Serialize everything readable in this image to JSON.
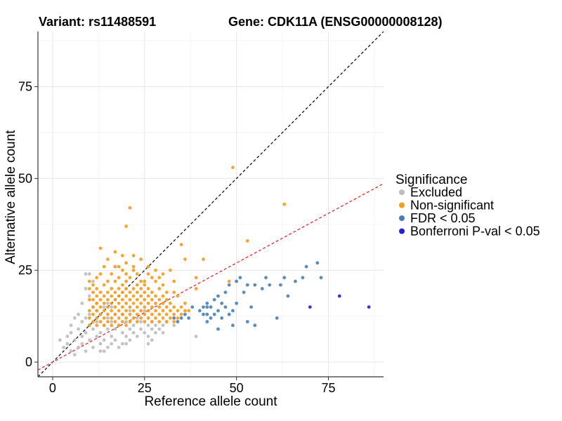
{
  "chart_data": {
    "type": "scatter",
    "title_left": "Variant: rs11488591",
    "title_right": "Gene: CDK11A (ENSG00000008128)",
    "xlabel": "Reference allele count",
    "ylabel": "Alternative allele count",
    "xlim": [
      -4,
      90
    ],
    "ylim": [
      -4,
      90
    ],
    "x_ticks": [
      0,
      25,
      50,
      75
    ],
    "y_ticks": [
      0,
      25,
      50,
      75
    ],
    "grid": true,
    "reference_lines": [
      {
        "name": "y = x",
        "slope": 1.0,
        "intercept": 0,
        "color": "#000000",
        "dash": "dashed"
      },
      {
        "name": "fit",
        "slope": 0.54,
        "intercept": 0,
        "color": "#e31a1c",
        "dash": "dashed"
      }
    ],
    "legend": {
      "title": "Significance",
      "position": "right",
      "entries": [
        {
          "label": "Excluded",
          "color": "#bdbdbd"
        },
        {
          "label": "Non-significant",
          "color": "#f39c1f"
        },
        {
          "label": "FDR < 0.05",
          "color": "#4a7fb5"
        },
        {
          "label": "Bonferroni P-val < 0.05",
          "color": "#1f1fdd"
        }
      ]
    },
    "series": [
      {
        "name": "Excluded",
        "color": "#bdbdbd",
        "points": [
          [
            2,
            6
          ],
          [
            3,
            4
          ],
          [
            4,
            5
          ],
          [
            5,
            3
          ],
          [
            5,
            8
          ],
          [
            6,
            6
          ],
          [
            6,
            2
          ],
          [
            7,
            9
          ],
          [
            7,
            4
          ],
          [
            8,
            7
          ],
          [
            8,
            11
          ],
          [
            8,
            5
          ],
          [
            9,
            12
          ],
          [
            9,
            8
          ],
          [
            9,
            3
          ],
          [
            10,
            10
          ],
          [
            10,
            13
          ],
          [
            10,
            6
          ],
          [
            11,
            15
          ],
          [
            11,
            9
          ],
          [
            11,
            4
          ],
          [
            12,
            11
          ],
          [
            12,
            7
          ],
          [
            12,
            16
          ],
          [
            13,
            8
          ],
          [
            13,
            13
          ],
          [
            13,
            5
          ],
          [
            14,
            10
          ],
          [
            14,
            6
          ],
          [
            14,
            3
          ],
          [
            15,
            9
          ],
          [
            15,
            12
          ],
          [
            15,
            4
          ],
          [
            16,
            7
          ],
          [
            16,
            11
          ],
          [
            16,
            5
          ],
          [
            17,
            9
          ],
          [
            17,
            6
          ],
          [
            18,
            10
          ],
          [
            18,
            4
          ],
          [
            19,
            8
          ],
          [
            19,
            5
          ],
          [
            20,
            11
          ],
          [
            20,
            7
          ],
          [
            21,
            9
          ],
          [
            21,
            6
          ],
          [
            22,
            10
          ],
          [
            22,
            8
          ],
          [
            23,
            12
          ],
          [
            23,
            7
          ],
          [
            24,
            9
          ],
          [
            24,
            11
          ],
          [
            25,
            8
          ],
          [
            26,
            10
          ],
          [
            26,
            7
          ],
          [
            27,
            11
          ],
          [
            27,
            9
          ],
          [
            28,
            10
          ],
          [
            28,
            8
          ],
          [
            29,
            9
          ],
          [
            30,
            10
          ],
          [
            30,
            8
          ],
          [
            31,
            11
          ],
          [
            33,
            10
          ],
          [
            9,
            24
          ],
          [
            10,
            24
          ],
          [
            8,
            16
          ],
          [
            7,
            13
          ],
          [
            6,
            12
          ],
          [
            10,
            18
          ],
          [
            9,
            20
          ],
          [
            11,
            22
          ],
          [
            12,
            14
          ],
          [
            5,
            10
          ],
          [
            4,
            7
          ],
          [
            13,
            3
          ],
          [
            20,
            5
          ],
          [
            14,
            15
          ],
          [
            16,
            15
          ],
          [
            15,
            16
          ],
          [
            17,
            13
          ],
          [
            21,
            14
          ],
          [
            19,
            13
          ],
          [
            25,
            14
          ],
          [
            27,
            6
          ],
          [
            26,
            5
          ],
          [
            39,
            7
          ]
        ]
      },
      {
        "name": "Non-significant",
        "color": "#f39c1f",
        "points": [
          [
            10,
            10
          ],
          [
            10,
            12
          ],
          [
            10,
            14
          ],
          [
            10,
            17
          ],
          [
            10,
            20
          ],
          [
            10,
            22
          ],
          [
            11,
            11
          ],
          [
            11,
            13
          ],
          [
            11,
            15
          ],
          [
            11,
            17
          ],
          [
            11,
            19
          ],
          [
            11,
            21
          ],
          [
            12,
            10
          ],
          [
            12,
            12
          ],
          [
            12,
            14
          ],
          [
            12,
            16
          ],
          [
            12,
            18
          ],
          [
            12,
            20
          ],
          [
            12,
            23
          ],
          [
            13,
            11
          ],
          [
            13,
            13
          ],
          [
            13,
            15
          ],
          [
            13,
            17
          ],
          [
            13,
            19
          ],
          [
            13,
            24
          ],
          [
            13,
            31
          ],
          [
            14,
            10
          ],
          [
            14,
            12
          ],
          [
            14,
            14
          ],
          [
            14,
            16
          ],
          [
            14,
            18
          ],
          [
            14,
            21
          ],
          [
            14,
            26
          ],
          [
            15,
            11
          ],
          [
            15,
            13
          ],
          [
            15,
            15
          ],
          [
            15,
            17
          ],
          [
            15,
            19
          ],
          [
            15,
            22
          ],
          [
            15,
            28
          ],
          [
            16,
            10
          ],
          [
            16,
            12
          ],
          [
            16,
            14
          ],
          [
            16,
            16
          ],
          [
            16,
            18
          ],
          [
            16,
            20
          ],
          [
            16,
            24
          ],
          [
            17,
            11
          ],
          [
            17,
            13
          ],
          [
            17,
            15
          ],
          [
            17,
            17
          ],
          [
            17,
            19
          ],
          [
            17,
            22
          ],
          [
            17,
            30
          ],
          [
            18,
            10
          ],
          [
            18,
            12
          ],
          [
            18,
            14
          ],
          [
            18,
            16
          ],
          [
            18,
            18
          ],
          [
            18,
            20
          ],
          [
            18,
            23
          ],
          [
            18,
            26
          ],
          [
            19,
            11
          ],
          [
            19,
            13
          ],
          [
            19,
            15
          ],
          [
            19,
            17
          ],
          [
            19,
            19
          ],
          [
            19,
            21
          ],
          [
            19,
            25
          ],
          [
            19,
            29
          ],
          [
            20,
            10
          ],
          [
            20,
            12
          ],
          [
            20,
            14
          ],
          [
            20,
            16
          ],
          [
            20,
            18
          ],
          [
            20,
            20
          ],
          [
            20,
            22
          ],
          [
            20,
            24
          ],
          [
            20,
            27
          ],
          [
            20,
            37
          ],
          [
            21,
            11
          ],
          [
            21,
            13
          ],
          [
            21,
            15
          ],
          [
            21,
            17
          ],
          [
            21,
            19
          ],
          [
            21,
            23
          ],
          [
            21,
            42
          ],
          [
            22,
            12
          ],
          [
            22,
            14
          ],
          [
            22,
            16
          ],
          [
            22,
            18
          ],
          [
            22,
            20
          ],
          [
            22,
            25
          ],
          [
            22,
            29
          ],
          [
            23,
            11
          ],
          [
            23,
            13
          ],
          [
            23,
            15
          ],
          [
            23,
            17
          ],
          [
            23,
            19
          ],
          [
            23,
            21
          ],
          [
            23,
            24
          ],
          [
            24,
            12
          ],
          [
            24,
            14
          ],
          [
            24,
            16
          ],
          [
            24,
            18
          ],
          [
            24,
            20
          ],
          [
            24,
            22
          ],
          [
            25,
            11
          ],
          [
            25,
            13
          ],
          [
            25,
            15
          ],
          [
            25,
            17
          ],
          [
            25,
            19
          ],
          [
            25,
            21
          ],
          [
            26,
            12
          ],
          [
            26,
            14
          ],
          [
            26,
            16
          ],
          [
            26,
            18
          ],
          [
            26,
            20
          ],
          [
            26,
            26
          ],
          [
            27,
            11
          ],
          [
            27,
            13
          ],
          [
            27,
            15
          ],
          [
            27,
            17
          ],
          [
            27,
            19
          ],
          [
            27,
            23
          ],
          [
            28,
            12
          ],
          [
            28,
            14
          ],
          [
            28,
            16
          ],
          [
            28,
            18
          ],
          [
            28,
            22
          ],
          [
            29,
            11
          ],
          [
            29,
            13
          ],
          [
            29,
            15
          ],
          [
            29,
            17
          ],
          [
            29,
            20
          ],
          [
            30,
            12
          ],
          [
            30,
            14
          ],
          [
            30,
            16
          ],
          [
            30,
            18
          ],
          [
            30,
            21
          ],
          [
            31,
            11
          ],
          [
            31,
            13
          ],
          [
            31,
            15
          ],
          [
            31,
            17
          ],
          [
            32,
            12
          ],
          [
            32,
            14
          ],
          [
            32,
            16
          ],
          [
            32,
            25
          ],
          [
            33,
            11
          ],
          [
            33,
            13
          ],
          [
            33,
            15
          ],
          [
            33,
            19
          ],
          [
            34,
            12
          ],
          [
            34,
            14
          ],
          [
            34,
            18
          ],
          [
            35,
            13
          ],
          [
            35,
            15
          ],
          [
            35,
            32
          ],
          [
            36,
            14
          ],
          [
            36,
            16
          ],
          [
            36,
            28
          ],
          [
            37,
            14
          ],
          [
            39,
            20
          ],
          [
            39,
            23
          ],
          [
            41,
            28
          ],
          [
            48,
            22
          ],
          [
            49,
            53
          ],
          [
            53,
            33
          ],
          [
            63,
            43
          ],
          [
            17,
            26
          ],
          [
            22,
            26
          ],
          [
            24,
            28
          ],
          [
            26,
            24
          ],
          [
            30,
            24
          ],
          [
            28,
            25
          ],
          [
            25,
            22
          ],
          [
            29,
            23
          ],
          [
            31,
            19
          ],
          [
            33,
            22
          ]
        ]
      },
      {
        "name": "FDR < 0.05",
        "color": "#4a7fb5",
        "points": [
          [
            33,
            12
          ],
          [
            34,
            11
          ],
          [
            35,
            12
          ],
          [
            36,
            13
          ],
          [
            37,
            12
          ],
          [
            38,
            15
          ],
          [
            40,
            14
          ],
          [
            41,
            13
          ],
          [
            41,
            15
          ],
          [
            42,
            11
          ],
          [
            42,
            13
          ],
          [
            42,
            16
          ],
          [
            43,
            12
          ],
          [
            43,
            15
          ],
          [
            44,
            13
          ],
          [
            44,
            17
          ],
          [
            45,
            14
          ],
          [
            45,
            18
          ],
          [
            46,
            12
          ],
          [
            46,
            16
          ],
          [
            47,
            19
          ],
          [
            47,
            15
          ],
          [
            48,
            21
          ],
          [
            48,
            13
          ],
          [
            49,
            14
          ],
          [
            49,
            10
          ],
          [
            50,
            22
          ],
          [
            50,
            16
          ],
          [
            51,
            23
          ],
          [
            52,
            19
          ],
          [
            53,
            11
          ],
          [
            53,
            21
          ],
          [
            54,
            15
          ],
          [
            55,
            10
          ],
          [
            57,
            20
          ],
          [
            58,
            23
          ],
          [
            59,
            21
          ],
          [
            61,
            12
          ],
          [
            62,
            21
          ],
          [
            63,
            23
          ],
          [
            64,
            18
          ],
          [
            66,
            22
          ],
          [
            68,
            23
          ],
          [
            69,
            26
          ],
          [
            72,
            27
          ],
          [
            73,
            23
          ],
          [
            45,
            9
          ],
          [
            42,
            15
          ],
          [
            55,
            21
          ]
        ]
      },
      {
        "name": "Bonferroni P-val < 0.05",
        "color": "#1f1fdd",
        "points": [
          [
            70,
            15
          ],
          [
            78,
            18
          ],
          [
            86,
            15
          ]
        ]
      }
    ]
  }
}
